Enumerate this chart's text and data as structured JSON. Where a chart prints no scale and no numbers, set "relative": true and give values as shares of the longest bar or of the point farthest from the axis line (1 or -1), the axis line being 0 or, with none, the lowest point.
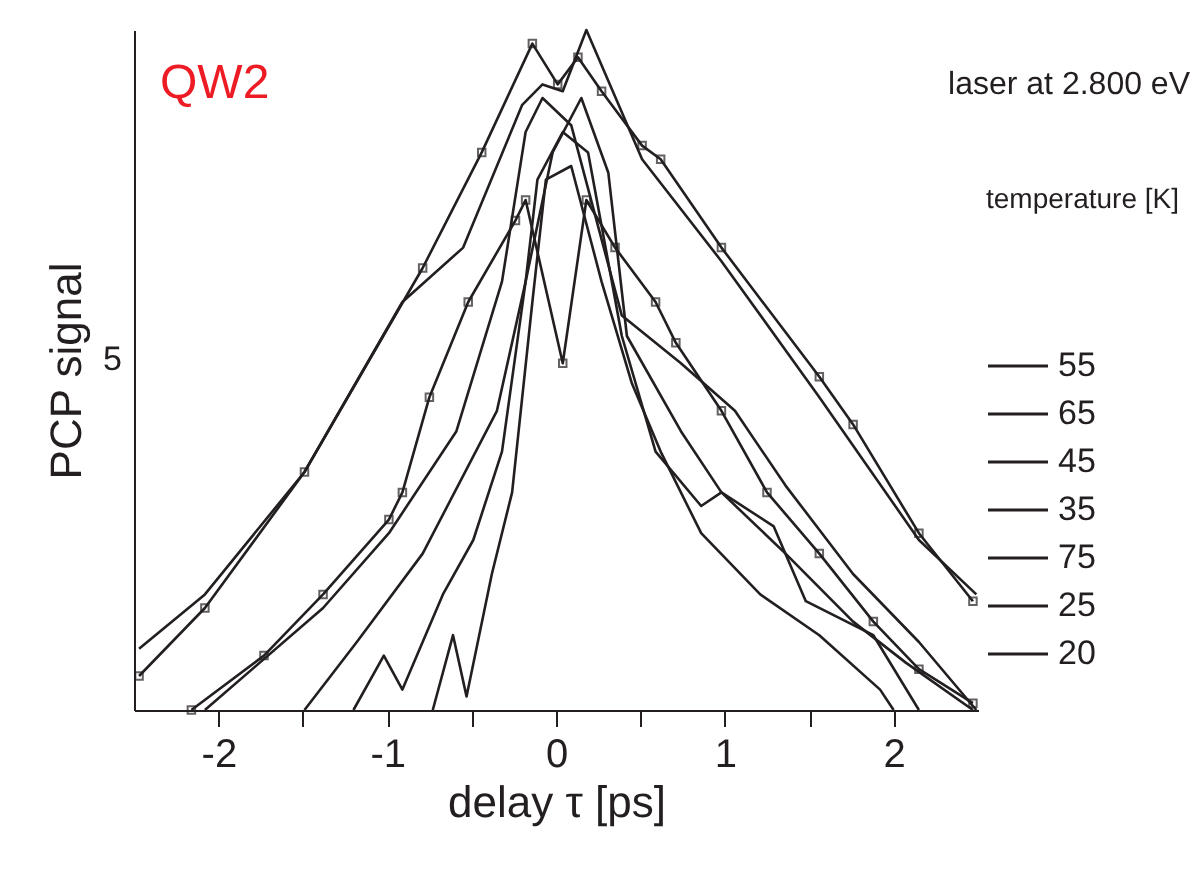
{
  "chart_data": {
    "type": "line",
    "relative": true,
    "xlabel": "delay τ [ps]",
    "ylabel": "PCP signal",
    "legend_title": "temperature [K]",
    "legend": "right",
    "grid": false,
    "annotations": [
      "QW2",
      "laser at 2.800 eV",
      "5"
    ],
    "xlim": [
      -2.5,
      2.5
    ],
    "xticks": [
      -2,
      {
        "value": -1.5,
        "label": null
      },
      -1,
      {
        "value": -0.5,
        "label": null
      },
      0,
      {
        "value": 0.5,
        "label": null
      },
      1,
      {
        "value": 1.5,
        "label": null
      },
      2
    ],
    "series": [
      {
        "name": "55",
        "color": "#231f20",
        "marker": "none",
        "x": [
          -2.47,
          -2.08,
          -1.49,
          -0.91,
          -0.55,
          -0.2,
          -0.08,
          0.04,
          0.18,
          0.51,
          0.98,
          1.56,
          2.15,
          2.49
        ],
        "values": [
          0.09,
          0.17,
          0.35,
          0.6,
          0.68,
          0.89,
          0.92,
          0.91,
          1.0,
          0.81,
          0.66,
          0.46,
          0.25,
          0.17
        ]
      },
      {
        "name": "65",
        "color": "#231f20",
        "marker": "square",
        "x": [
          -2.47,
          -2.08,
          -1.49,
          -0.79,
          -0.44,
          -0.14,
          0.01,
          0.13,
          0.27,
          0.51,
          0.62,
          0.98,
          1.56,
          1.76,
          2.15,
          2.47
        ],
        "values": [
          0.05,
          0.15,
          0.35,
          0.65,
          0.82,
          0.98,
          0.92,
          0.96,
          0.91,
          0.83,
          0.81,
          0.68,
          0.49,
          0.42,
          0.26,
          0.16
        ]
      },
      {
        "name": "45",
        "color": "#231f20",
        "marker": "none",
        "x": [
          -2.08,
          -1.38,
          -0.99,
          -0.59,
          -0.32,
          -0.18,
          -0.08,
          0.09,
          0.39,
          0.74,
          1.06,
          1.36,
          1.76,
          2.15,
          2.49
        ],
        "values": [
          0.0,
          0.15,
          0.26,
          0.41,
          0.63,
          0.85,
          0.9,
          0.86,
          0.58,
          0.51,
          0.44,
          0.33,
          0.2,
          0.1,
          0.0
        ]
      },
      {
        "name": "35",
        "color": "#231f20",
        "marker": "none",
        "x": [
          -1.49,
          -1.18,
          -0.79,
          -0.35,
          -0.18,
          -0.02,
          0.15,
          0.31,
          0.42,
          0.74,
          0.98,
          1.36,
          1.76,
          2.07,
          2.47
        ],
        "values": [
          0.0,
          0.1,
          0.23,
          0.44,
          0.63,
          0.82,
          0.9,
          0.79,
          0.55,
          0.41,
          0.32,
          0.23,
          0.13,
          0.07,
          0.0
        ]
      },
      {
        "name": "75",
        "color": "#231f20",
        "marker": "square",
        "x": [
          -2.16,
          -1.73,
          -1.38,
          -0.99,
          -0.91,
          -0.75,
          -0.52,
          -0.24,
          -0.18,
          0.04,
          0.18,
          0.35,
          0.59,
          0.71,
          0.98,
          1.25,
          1.56,
          1.88,
          2.15,
          2.47
        ],
        "values": [
          0.0,
          0.08,
          0.17,
          0.28,
          0.32,
          0.46,
          0.6,
          0.72,
          0.75,
          0.51,
          0.75,
          0.68,
          0.6,
          0.54,
          0.44,
          0.32,
          0.23,
          0.13,
          0.06,
          0.01
        ]
      },
      {
        "name": "25",
        "color": "#231f20",
        "marker": "none",
        "x": [
          -1.2,
          -1.02,
          -0.91,
          -0.67,
          -0.49,
          -0.32,
          -0.18,
          -0.11,
          0.04,
          0.19,
          0.39,
          0.59,
          0.86,
          0.98,
          1.29,
          1.48,
          1.88,
          2.15
        ],
        "values": [
          0.0,
          0.08,
          0.03,
          0.17,
          0.25,
          0.38,
          0.63,
          0.78,
          0.85,
          0.82,
          0.55,
          0.38,
          0.3,
          0.32,
          0.27,
          0.16,
          0.11,
          0.0
        ]
      },
      {
        "name": "20",
        "color": "#231f20",
        "marker": "none",
        "x": [
          -0.73,
          -0.61,
          -0.53,
          -0.38,
          -0.26,
          -0.14,
          -0.06,
          0.09,
          0.27,
          0.45,
          0.62,
          0.86,
          1.21,
          1.56,
          1.92,
          2.0
        ],
        "values": [
          0.0,
          0.11,
          0.02,
          0.2,
          0.32,
          0.6,
          0.78,
          0.8,
          0.63,
          0.48,
          0.38,
          0.26,
          0.17,
          0.11,
          0.03,
          0.0
        ]
      }
    ]
  }
}
